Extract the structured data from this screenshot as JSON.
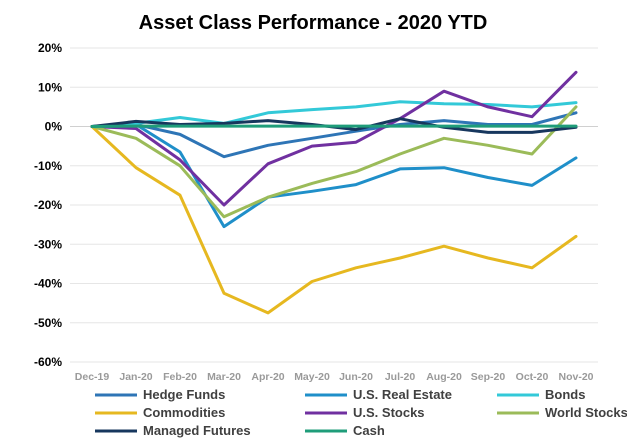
{
  "chart_data": {
    "type": "line",
    "title": "Asset Class Performance - 2020 YTD",
    "xlabel": "",
    "ylabel": "",
    "categories": [
      "Dec-19",
      "Jan-20",
      "Feb-20",
      "Mar-20",
      "Apr-20",
      "May-20",
      "Jun-20",
      "Jul-20",
      "Aug-20",
      "Sep-20",
      "Oct-20",
      "Nov-20"
    ],
    "ylim": [
      -60,
      20
    ],
    "yticks": [
      20,
      10,
      0,
      -10,
      -20,
      -30,
      -40,
      -50,
      -60
    ],
    "ytick_labels": [
      "20%",
      "10%",
      "0%",
      "-10%",
      "-20%",
      "-30%",
      "-40%",
      "-50%",
      "-60%"
    ],
    "grid": true,
    "legend_position": "bottom",
    "series": [
      {
        "name": "Hedge Funds",
        "color": "#2e75b6",
        "values": [
          0,
          0.5,
          -2,
          -7.7,
          -4.8,
          -3,
          -1.2,
          0.5,
          1.5,
          0.5,
          0.5,
          3.5
        ]
      },
      {
        "name": "U.S. Real Estate",
        "color": "#1f8fc9",
        "values": [
          0,
          0.5,
          -6.5,
          -25.5,
          -18,
          -16.5,
          -14.8,
          -10.8,
          -10.5,
          -13,
          -15,
          -8
        ]
      },
      {
        "name": "Bonds",
        "color": "#33c9d8",
        "values": [
          0,
          0.8,
          2.3,
          0.8,
          3.5,
          4.3,
          5,
          6.3,
          5.8,
          5.6,
          5,
          6.1
        ]
      },
      {
        "name": "Commodities",
        "color": "#e6b820",
        "values": [
          0,
          -10.5,
          -17.5,
          -42.5,
          -47.5,
          -39.5,
          -36,
          -33.5,
          -30.5,
          -33.5,
          -36,
          -28
        ]
      },
      {
        "name": "U.S. Stocks",
        "color": "#7030a0",
        "values": [
          0,
          -0.5,
          -8.5,
          -20,
          -9.5,
          -5,
          -4,
          2,
          9,
          5,
          2.5,
          13.8
        ]
      },
      {
        "name": "World Stocks",
        "color": "#9bbb59",
        "values": [
          0,
          -3,
          -10,
          -23,
          -18,
          -14.5,
          -11.5,
          -7,
          -3,
          -4.8,
          -7,
          5
        ]
      },
      {
        "name": "Managed Futures",
        "color": "#17375e",
        "values": [
          0,
          1.3,
          0.5,
          0.8,
          1.5,
          0.5,
          -0.8,
          2,
          -0.2,
          -1.5,
          -1.5,
          -0.2
        ]
      },
      {
        "name": "Cash",
        "color": "#1f9d7a",
        "values": [
          0,
          0.1,
          0.1,
          0.1,
          0.1,
          0.1,
          0.1,
          0.1,
          0.1,
          0.1,
          0.1,
          0.1
        ]
      }
    ]
  }
}
